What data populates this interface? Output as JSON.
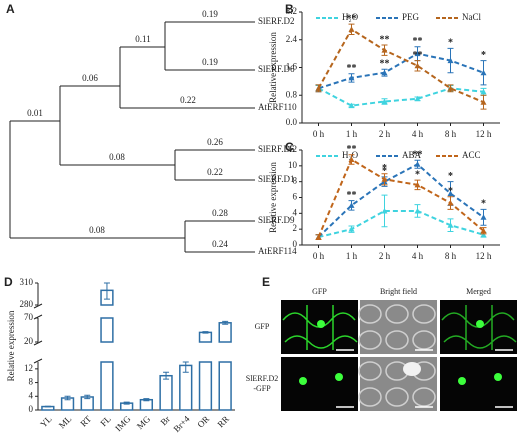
{
  "tree": {
    "panel": "A",
    "leaves": [
      "SlERF.D2",
      "SlERF.D6",
      "AtERF110",
      "SlERF.D5",
      "SlERF.D1",
      "SlERF.D9",
      "AtERF114"
    ],
    "branch_labels": [
      0.19,
      0.11,
      0.19,
      0.06,
      0.22,
      0.01,
      0.26,
      0.08,
      0.22,
      0.28,
      0.08,
      0.24
    ]
  },
  "chart_data": [
    {
      "panel": "B",
      "type": "line",
      "ylabel": "Relative expression",
      "categories": [
        "0 h",
        "1 h",
        "2 h",
        "4 h",
        "8 h",
        "12 h"
      ],
      "ylim": [
        0,
        3.2
      ],
      "yticks": [
        {
          "value": 0,
          "label": "0.0"
        },
        0.8,
        1.6,
        2.4,
        3.2
      ],
      "series": [
        {
          "name": "H₂O",
          "color": "#3fd3df",
          "values": [
            1.0,
            0.5,
            0.62,
            0.7,
            1.0,
            0.9
          ],
          "errors": [
            0.08,
            0.04,
            0.08,
            0.05,
            0.08,
            0.1
          ],
          "stars": [
            null,
            null,
            null,
            null,
            null,
            null
          ]
        },
        {
          "name": "PEG",
          "color": "#2a74b8",
          "values": [
            1.0,
            1.3,
            1.45,
            2.0,
            1.8,
            1.45
          ],
          "errors": [
            0.1,
            0.12,
            0.1,
            0.2,
            0.35,
            0.35
          ],
          "stars": [
            null,
            "**",
            "**",
            "**",
            "*",
            "*"
          ]
        },
        {
          "name": "NaCl",
          "color": "#b5651d",
          "values": [
            1.0,
            2.7,
            2.1,
            1.65,
            1.0,
            0.6
          ],
          "errors": [
            0.1,
            0.15,
            0.15,
            0.15,
            0.1,
            0.2
          ],
          "stars": [
            null,
            "**",
            "**",
            "**",
            null,
            null
          ]
        }
      ]
    },
    {
      "panel": "C",
      "type": "line",
      "ylabel": "Relative expression",
      "categories": [
        "0 h",
        "1 h",
        "2 h",
        "4 h",
        "8 h",
        "12 h"
      ],
      "ylim": [
        0,
        12
      ],
      "yticks": [
        0,
        2,
        4,
        6,
        8,
        10,
        12
      ],
      "series": [
        {
          "name": "H₂O",
          "color": "#3fd3df",
          "values": [
            1.0,
            2.0,
            4.3,
            4.3,
            2.5,
            1.3
          ],
          "errors": [
            0.3,
            0.4,
            2.0,
            0.8,
            0.8,
            0.3
          ],
          "stars": [
            null,
            null,
            null,
            null,
            null,
            null
          ]
        },
        {
          "name": "ABA",
          "color": "#2a74b8",
          "values": [
            1.0,
            5.0,
            8.0,
            10.2,
            6.5,
            3.5
          ],
          "errors": [
            0.3,
            0.6,
            0.6,
            0.5,
            1.5,
            1.0
          ],
          "stars": [
            null,
            "**",
            "*",
            "**",
            "*",
            "*"
          ]
        },
        {
          "name": "ACC",
          "color": "#c0651a",
          "values": [
            1.0,
            10.8,
            8.3,
            7.6,
            5.3,
            1.8
          ],
          "errors": [
            0.3,
            0.6,
            0.7,
            0.6,
            0.8,
            0.4
          ],
          "stars": [
            null,
            "**",
            "*",
            "*",
            "*",
            null
          ]
        }
      ]
    },
    {
      "panel": "D",
      "type": "bar",
      "ylabel": "Relative expression",
      "color": "#2e6fa5",
      "categories": [
        "YL",
        "ML",
        "RT",
        "FL",
        "IMG",
        "MG",
        "Br",
        "Br+4",
        "OR",
        "RR"
      ],
      "values": [
        1,
        3.5,
        3.8,
        300,
        2,
        3,
        10,
        13,
        40,
        60
      ],
      "errors": [
        0.1,
        0.5,
        0.5,
        12,
        0.3,
        0.3,
        1,
        2,
        1.5,
        3
      ],
      "ysegments": [
        {
          "ylim": [
            0,
            14
          ],
          "yticks": [
            0,
            4,
            8,
            12
          ]
        },
        {
          "ylim": [
            20,
            70
          ],
          "yticks": [
            20,
            70
          ]
        },
        {
          "ylim": [
            280,
            310
          ],
          "yticks": [
            280,
            310
          ]
        }
      ]
    }
  ],
  "images": {
    "panel": "E",
    "columns": [
      "GFP",
      "Bright field",
      "Merged"
    ],
    "rows": [
      [
        "GFP"
      ],
      [
        "SlERF.D2",
        "-GFP"
      ]
    ]
  }
}
